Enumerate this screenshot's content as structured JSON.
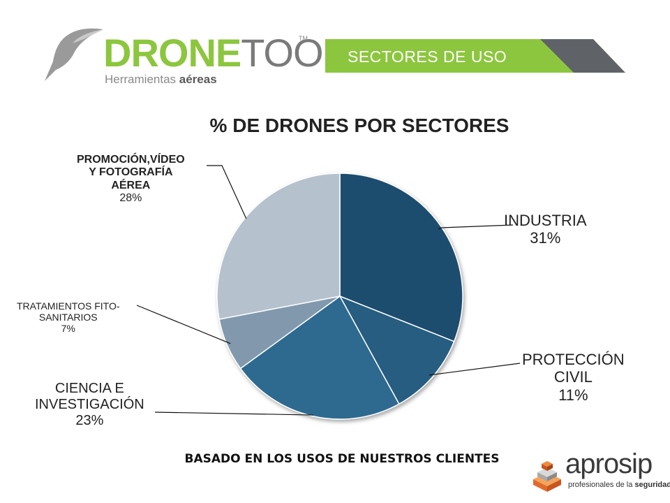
{
  "logo": {
    "word_drone": "DRONE",
    "word_tools": "TOOLS",
    "tagline_plain": "Herramientas ",
    "tagline_bold": "aéreas",
    "tm": "TM"
  },
  "banner": {
    "text": "SECTORES DE USO"
  },
  "footer": {
    "text": "BASADO EN LOS USOS DE NUESTROS CLIENTES"
  },
  "aprosip": {
    "name": "aprosip",
    "sub_plain": "profesionales de la ",
    "sub_bold": "seguridad"
  },
  "colors": {
    "brand_green": "#8cc63e",
    "banner_dark": "#5f6367"
  },
  "chart_data": {
    "type": "pie",
    "title": "% DE DRONES POR SECTORES",
    "slices": [
      {
        "name": "INDUSTRIA",
        "value": 31,
        "pct_label": "31%",
        "color": "#1f4e6e"
      },
      {
        "name": "PROTECCIÓN CIVIL",
        "value": 11,
        "pct_label": "11%",
        "color": "#255d80"
      },
      {
        "name": "CIENCIA E INVESTIGACIÓN",
        "value": 23,
        "pct_label": "23%",
        "color": "#2e6a90"
      },
      {
        "name": "TRATAMIENTOS FITO-SANITARIOS",
        "value": 7,
        "pct_label": "7%",
        "color": "#8299ad"
      },
      {
        "name": "PROMOCIÓN,VÍDEO Y FOTOGRAFÍA AÉREA",
        "value": 28,
        "pct_label": "28%",
        "color": "#b5c1cd"
      }
    ],
    "labels": {
      "industria": [
        "INDUSTRIA",
        "31%"
      ],
      "proteccion": [
        "PROTECCIÓN",
        "CIVIL",
        "11%"
      ],
      "ciencia": [
        "CIENCIA E",
        "INVESTIGACIÓN",
        "23%"
      ],
      "tratamientos": [
        "TRATAMIENTOS FITO-",
        "SANITARIOS",
        "7%"
      ],
      "promocion": [
        "PROMOCIÓN,VÍDEO",
        "Y FOTOGRAFÍA",
        "AÉREA",
        "28%"
      ]
    }
  }
}
